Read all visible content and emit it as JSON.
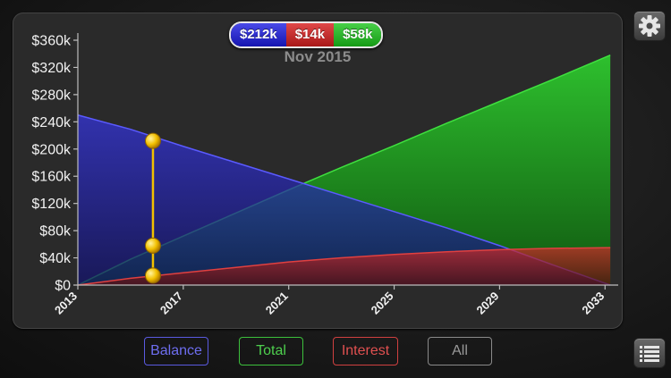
{
  "readout": {
    "date": "Nov 2015",
    "balance": "$212k",
    "interest": "$14k",
    "total": "$58k"
  },
  "buttons": {
    "balance": "Balance",
    "total": "Total",
    "interest": "Interest",
    "all": "All"
  },
  "icons": {
    "settings": "gear-icon",
    "list": "list-icon"
  },
  "colors": {
    "balance": "#2a2ad0",
    "total": "#22b022",
    "interest": "#c82a2a",
    "marker": "#f2c000"
  },
  "chart_data": {
    "type": "area",
    "title": "",
    "xlabel": "",
    "ylabel": "",
    "xlim": [
      2013,
      2033.5
    ],
    "ylim": [
      0,
      360000
    ],
    "y_ticks": [
      0,
      40000,
      80000,
      120000,
      160000,
      200000,
      240000,
      280000,
      320000,
      360000
    ],
    "y_tick_labels": [
      "$0",
      "$40k",
      "$80k",
      "$120k",
      "$160k",
      "$200k",
      "$240k",
      "$280k",
      "$320k",
      "$360k"
    ],
    "x_ticks": [
      2013,
      2017,
      2021,
      2025,
      2029,
      2033
    ],
    "x_tick_labels": [
      "2013",
      "2017",
      "2021",
      "2025",
      "2029",
      "2033"
    ],
    "grid": false,
    "series": [
      {
        "name": "Balance",
        "x": [
          2013,
          2015,
          2017,
          2019,
          2021,
          2023,
          2025,
          2027,
          2029,
          2031,
          2033.2
        ],
        "y": [
          250000,
          229000,
          204000,
          180000,
          156000,
          132000,
          108000,
          84000,
          58000,
          30000,
          0
        ]
      },
      {
        "name": "Total",
        "x": [
          2013,
          2015,
          2017,
          2019,
          2021,
          2023,
          2025,
          2027,
          2029,
          2031,
          2033.2
        ],
        "y": [
          0,
          38000,
          72000,
          106000,
          140000,
          173000,
          205000,
          238000,
          270000,
          302000,
          338000
        ]
      },
      {
        "name": "Interest",
        "x": [
          2013,
          2015,
          2017,
          2019,
          2021,
          2023,
          2025,
          2027,
          2029,
          2031,
          2033.2
        ],
        "y": [
          0,
          10000,
          18000,
          26000,
          34000,
          40000,
          45000,
          49000,
          52000,
          54000,
          55000
        ]
      }
    ],
    "marker": {
      "x": 2015.85,
      "values": [
        212000,
        58000,
        14000
      ]
    }
  }
}
